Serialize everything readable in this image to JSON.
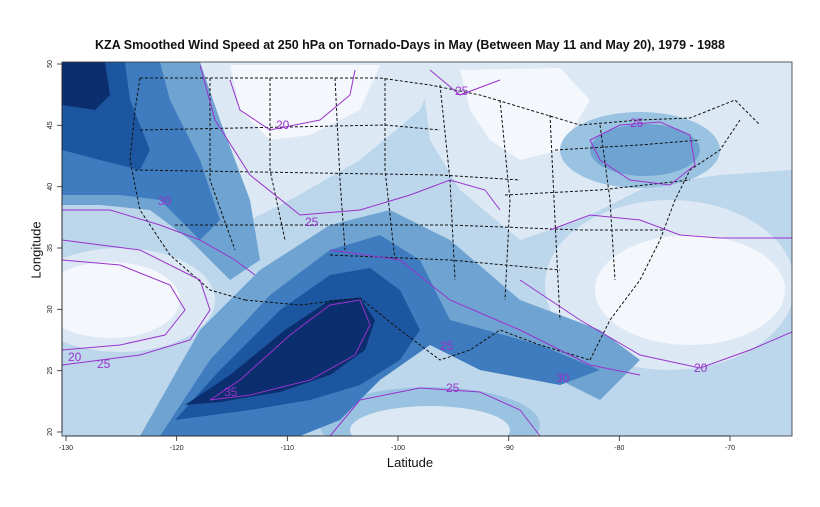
{
  "title": "KZA Smoothed Wind Speed at 250 hPa on Tornado-Days in May (Between May 11 and May 20), 1979 - 1988",
  "xlabel": "Latitude",
  "ylabel": "Longitude",
  "x_ticks": [
    "-130",
    "-120",
    "-110",
    "-100",
    "-90",
    "-80",
    "-70"
  ],
  "y_ticks": [
    "20",
    "25",
    "30",
    "35",
    "40",
    "45",
    "50"
  ],
  "contour_color": "#9933cc",
  "contour_labels": [
    "25",
    "20",
    "25",
    "30",
    "25",
    "25",
    "20",
    "25",
    "35",
    "25",
    "30",
    "20"
  ],
  "palette": [
    "#f4f7fc",
    "#dce9f5",
    "#bcd6ec",
    "#9ac3e1",
    "#6fa4d2",
    "#3f7cbf",
    "#1c56a0",
    "#0b2e6e"
  ]
}
